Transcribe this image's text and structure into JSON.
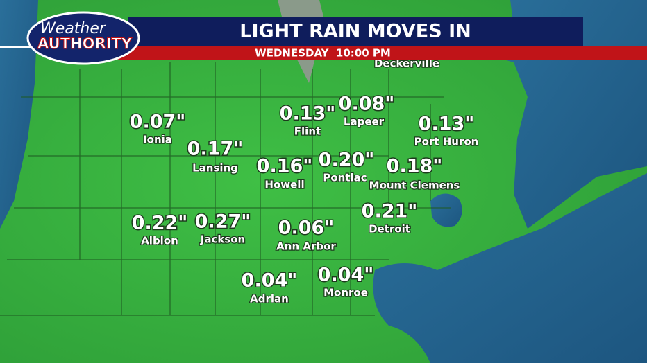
{
  "header": {
    "logo_line1": "Weather",
    "logo_line2": "AUTHORITY",
    "title": "LIGHT RAIN MOVES IN",
    "subtitle": "WEDNESDAY  10:00 PM"
  },
  "partial_label": "Deckerville",
  "locations": [
    {
      "name": "Ionia",
      "amount": "0.07\""
    },
    {
      "name": "Lansing",
      "amount": "0.17\""
    },
    {
      "name": "Flint",
      "amount": "0.13\""
    },
    {
      "name": "Lapeer",
      "amount": "0.08\""
    },
    {
      "name": "Port Huron",
      "amount": "0.13\""
    },
    {
      "name": "Howell",
      "amount": "0.16\""
    },
    {
      "name": "Pontiac",
      "amount": "0.20\""
    },
    {
      "name": "Mount Clemens",
      "amount": "0.18\""
    },
    {
      "name": "Albion",
      "amount": "0.22\""
    },
    {
      "name": "Jackson",
      "amount": "0.27\""
    },
    {
      "name": "Ann Arbor",
      "amount": "0.06\""
    },
    {
      "name": "Detroit",
      "amount": "0.21\""
    },
    {
      "name": "Adrian",
      "amount": "0.04\""
    },
    {
      "name": "Monroe",
      "amount": "0.04\""
    }
  ]
}
